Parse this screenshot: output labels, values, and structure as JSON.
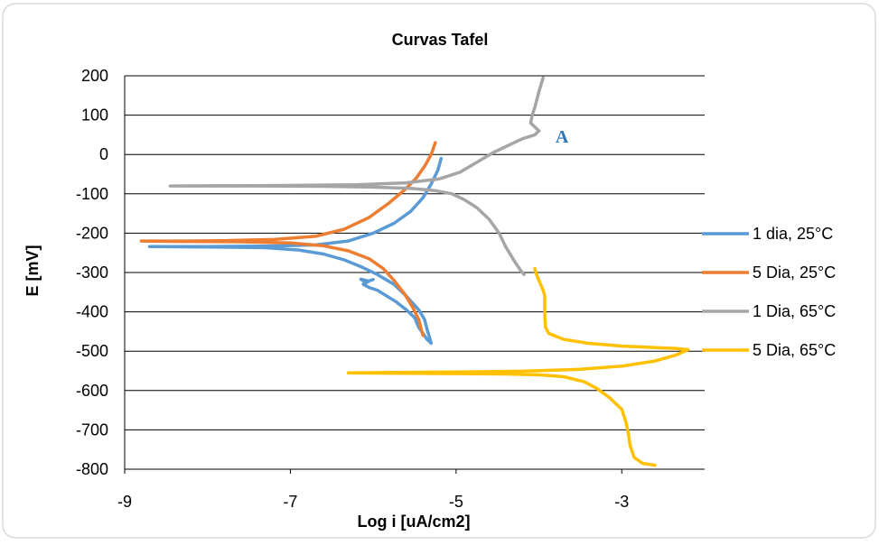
{
  "chart_data": {
    "type": "line",
    "title": "Curvas Tafel",
    "xlabel": "Log i [uA/cm2]",
    "ylabel": "E [mV]",
    "xlim": [
      -9,
      -2
    ],
    "ylim": [
      -800,
      200
    ],
    "xticks": [
      "-9",
      "-7",
      "-5",
      "-3"
    ],
    "yticks": [
      "200",
      "100",
      "0",
      "-100",
      "-200",
      "-300",
      "-400",
      "-500",
      "-600",
      "-700",
      "-800"
    ],
    "grid": "horizontal",
    "legend_position": "right",
    "annotations": [
      {
        "text": "A",
        "x": -3.8,
        "y": 30,
        "color": "#2e75b6"
      }
    ],
    "series": [
      {
        "name": "1 dia, 25°C",
        "color": "#5b9bd5",
        "points": [
          [
            -5.18,
            -10
          ],
          [
            -5.22,
            -40
          ],
          [
            -5.3,
            -75
          ],
          [
            -5.4,
            -110
          ],
          [
            -5.55,
            -145
          ],
          [
            -5.75,
            -175
          ],
          [
            -6.0,
            -200
          ],
          [
            -6.3,
            -220
          ],
          [
            -6.7,
            -230
          ],
          [
            -7.3,
            -233
          ],
          [
            -8.0,
            -234
          ],
          [
            -8.7,
            -234
          ],
          [
            -8.0,
            -235
          ],
          [
            -7.3,
            -237
          ],
          [
            -6.9,
            -243
          ],
          [
            -6.6,
            -253
          ],
          [
            -6.35,
            -268
          ],
          [
            -6.15,
            -285
          ],
          [
            -5.95,
            -305
          ],
          [
            -5.75,
            -330
          ],
          [
            -5.6,
            -360
          ],
          [
            -5.45,
            -395
          ],
          [
            -5.38,
            -420
          ],
          [
            -5.35,
            -445
          ],
          [
            -5.32,
            -465
          ],
          [
            -5.3,
            -480
          ],
          [
            -5.35,
            -470
          ],
          [
            -5.45,
            -440
          ],
          [
            -5.5,
            -415
          ],
          [
            -5.6,
            -395
          ],
          [
            -5.72,
            -375
          ],
          [
            -5.85,
            -358
          ],
          [
            -5.95,
            -345
          ],
          [
            -6.05,
            -338
          ],
          [
            -6.12,
            -330
          ],
          [
            -6.05,
            -322
          ],
          [
            -6.15,
            -317
          ],
          [
            -6.1,
            -325
          ],
          [
            -6.0,
            -318
          ]
        ]
      },
      {
        "name": "5 Dia, 25°C",
        "color": "#ed7d31",
        "points": [
          [
            -5.25,
            30
          ],
          [
            -5.3,
            0
          ],
          [
            -5.38,
            -30
          ],
          [
            -5.48,
            -60
          ],
          [
            -5.62,
            -90
          ],
          [
            -5.82,
            -125
          ],
          [
            -6.05,
            -160
          ],
          [
            -6.35,
            -190
          ],
          [
            -6.7,
            -208
          ],
          [
            -7.2,
            -216
          ],
          [
            -7.8,
            -219
          ],
          [
            -8.3,
            -220
          ],
          [
            -8.8,
            -220
          ],
          [
            -8.3,
            -221
          ],
          [
            -7.6,
            -222
          ],
          [
            -7.0,
            -225
          ],
          [
            -6.6,
            -232
          ],
          [
            -6.3,
            -245
          ],
          [
            -6.05,
            -265
          ],
          [
            -5.88,
            -290
          ],
          [
            -5.75,
            -320
          ],
          [
            -5.62,
            -355
          ],
          [
            -5.52,
            -390
          ],
          [
            -5.45,
            -420
          ],
          [
            -5.42,
            -445
          ],
          [
            -5.4,
            -460
          ]
        ]
      },
      {
        "name": "1 Dia, 65°C",
        "color": "#a5a5a5",
        "points": [
          [
            -3.95,
            195
          ],
          [
            -4.0,
            160
          ],
          [
            -4.05,
            120
          ],
          [
            -4.08,
            100
          ],
          [
            -4.1,
            80
          ],
          [
            -4.05,
            70
          ],
          [
            -4.0,
            60
          ],
          [
            -4.05,
            50
          ],
          [
            -4.2,
            40
          ],
          [
            -4.35,
            25
          ],
          [
            -4.55,
            5
          ],
          [
            -4.75,
            -20
          ],
          [
            -4.95,
            -45
          ],
          [
            -5.2,
            -62
          ],
          [
            -5.6,
            -72
          ],
          [
            -6.2,
            -77
          ],
          [
            -7.2,
            -79
          ],
          [
            -8.45,
            -80
          ],
          [
            -7.4,
            -80
          ],
          [
            -6.6,
            -81
          ],
          [
            -6.0,
            -83
          ],
          [
            -5.55,
            -86
          ],
          [
            -5.25,
            -92
          ],
          [
            -5.05,
            -100
          ],
          [
            -4.9,
            -115
          ],
          [
            -4.75,
            -135
          ],
          [
            -4.6,
            -165
          ],
          [
            -4.48,
            -200
          ],
          [
            -4.4,
            -235
          ],
          [
            -4.3,
            -270
          ],
          [
            -4.22,
            -295
          ],
          [
            -4.18,
            -305
          ]
        ]
      },
      {
        "name": "5 Dia, 65°C",
        "color": "#ffc000",
        "points": [
          [
            -4.05,
            -290
          ],
          [
            -4.02,
            -310
          ],
          [
            -3.98,
            -330
          ],
          [
            -3.95,
            -345
          ],
          [
            -3.93,
            -360
          ],
          [
            -3.93,
            -380
          ],
          [
            -3.93,
            -410
          ],
          [
            -3.92,
            -440
          ],
          [
            -3.88,
            -455
          ],
          [
            -3.7,
            -470
          ],
          [
            -3.4,
            -480
          ],
          [
            -3.0,
            -487
          ],
          [
            -2.6,
            -491
          ],
          [
            -2.35,
            -493
          ],
          [
            -2.2,
            -496
          ],
          [
            -2.35,
            -510
          ],
          [
            -2.6,
            -525
          ],
          [
            -3.0,
            -538
          ],
          [
            -3.5,
            -546
          ],
          [
            -4.2,
            -551
          ],
          [
            -5.0,
            -553
          ],
          [
            -5.8,
            -554
          ],
          [
            -6.3,
            -555
          ],
          [
            -5.8,
            -556
          ],
          [
            -5.0,
            -557
          ],
          [
            -4.4,
            -558
          ],
          [
            -4.0,
            -560
          ],
          [
            -3.7,
            -565
          ],
          [
            -3.45,
            -578
          ],
          [
            -3.3,
            -595
          ],
          [
            -3.15,
            -618
          ],
          [
            -3.0,
            -648
          ],
          [
            -2.95,
            -680
          ],
          [
            -2.92,
            -710
          ],
          [
            -2.9,
            -740
          ],
          [
            -2.85,
            -770
          ],
          [
            -2.75,
            -785
          ],
          [
            -2.6,
            -790
          ]
        ]
      }
    ]
  }
}
